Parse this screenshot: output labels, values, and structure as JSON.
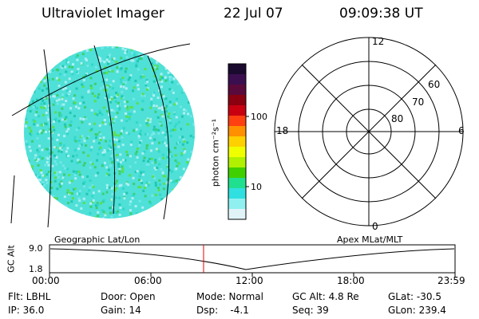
{
  "header": {
    "instrument": "Ultraviolet Imager",
    "date": "22 Jul 07",
    "time": "09:09:38 UT"
  },
  "colorbar": {
    "unit_label": "photon cm⁻²s⁻¹",
    "ticks": [
      "100",
      "10"
    ],
    "colors": [
      "#1a0a2e",
      "#3b0f4f",
      "#5a0a3a",
      "#8a0010",
      "#c80010",
      "#ff4010",
      "#ff9000",
      "#ffd000",
      "#f0ff00",
      "#b0f000",
      "#40d000",
      "#20e090",
      "#30e0e0",
      "#90f0f0",
      "#e0f4f8"
    ]
  },
  "polar_plot": {
    "mlt_labels": [
      "12",
      "18",
      "6",
      "0"
    ],
    "lat_labels": [
      "60",
      "70",
      "80"
    ]
  },
  "timeline": {
    "ylabel": "GC Alt",
    "ytick_top": "9.0",
    "ytick_bottom": "1.8",
    "left_label": "Geographic Lat/Lon",
    "right_label": "Apex MLat/MLT",
    "xticks": [
      "00:00",
      "06:00",
      "12:00",
      "18:00",
      "23:59"
    ],
    "marker_color": "#e00000"
  },
  "info": {
    "flt": "Flt: LBHL",
    "ip": "IP: 36.0",
    "door": "Door: Open",
    "gain": "Gain: 14",
    "mode": "Mode: Normal",
    "dsp": "Dsp:    -4.1",
    "gc_alt": "GC Alt: 4.8 Re",
    "seq": "Seq: 39",
    "glat": "GLat: -30.5",
    "glon": "GLon: 239.4"
  }
}
